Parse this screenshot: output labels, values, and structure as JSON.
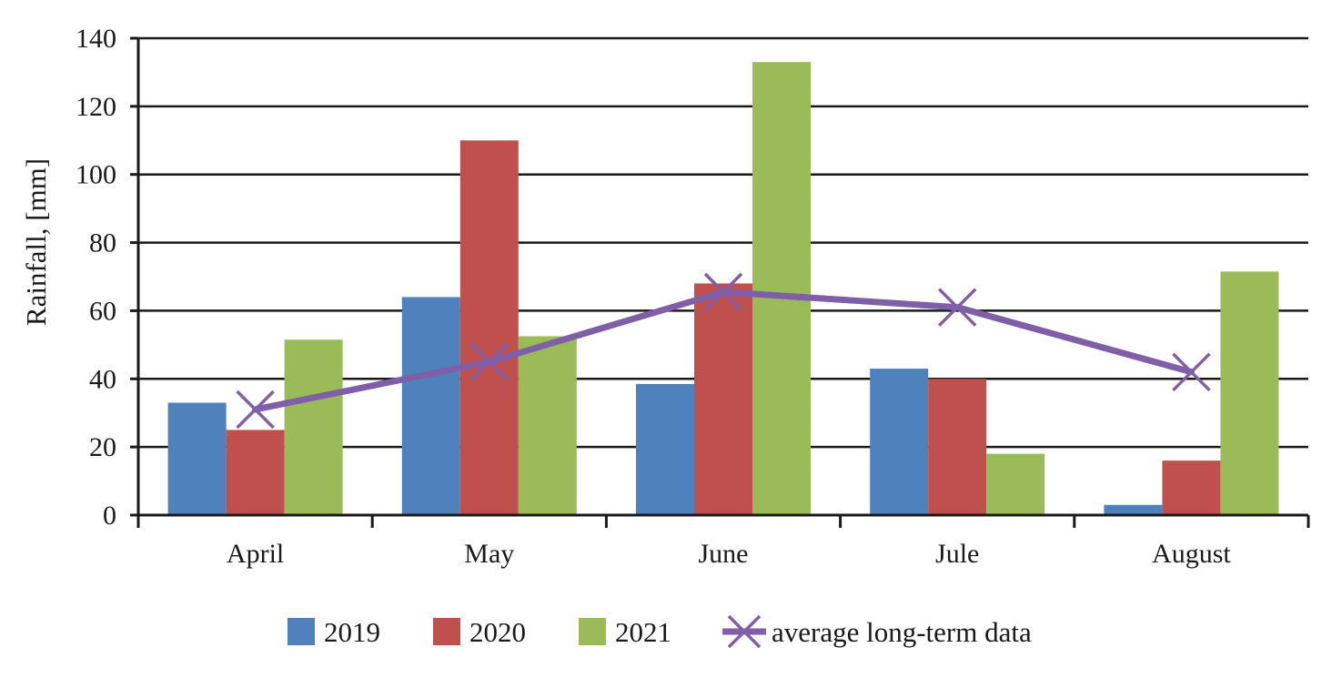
{
  "chart_data": {
    "type": "bar",
    "title": "",
    "xlabel": "",
    "ylabel": "Rainfall, [mm]",
    "ylim": [
      0,
      140
    ],
    "yticks": [
      0,
      20,
      40,
      60,
      80,
      100,
      120,
      140
    ],
    "grid": true,
    "legend_position": "bottom",
    "categories": [
      "April",
      "May",
      "June",
      "Jule",
      "August"
    ],
    "series": [
      {
        "name": "2019",
        "kind": "bar",
        "color": "#4f81bd",
        "values": [
          33,
          64,
          38.5,
          43,
          3
        ]
      },
      {
        "name": "2020",
        "kind": "bar",
        "color": "#c0504d",
        "values": [
          25,
          110,
          68,
          40,
          16
        ]
      },
      {
        "name": "2021",
        "kind": "bar",
        "color": "#9bbb59",
        "values": [
          51.5,
          52.5,
          133,
          18,
          71.5
        ]
      },
      {
        "name": "average long-term data",
        "kind": "line",
        "marker": "x",
        "color": "#7f5fa8",
        "values": [
          31,
          45,
          65.5,
          61,
          42
        ]
      }
    ]
  }
}
